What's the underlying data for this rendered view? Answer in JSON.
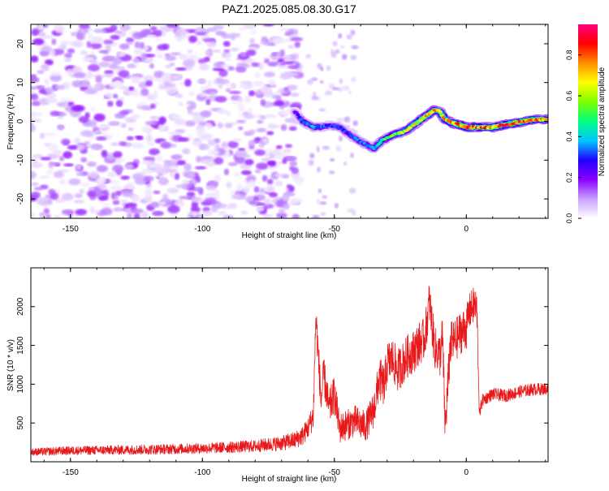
{
  "title": "PAZ1.2025.085.08.30.G17",
  "chart_data": [
    {
      "type": "heatmap",
      "xlabel": "Height of straight line (km)",
      "ylabel": "Frequency (Hz)",
      "xlim": [
        -165,
        31
      ],
      "ylim": [
        -25,
        25
      ],
      "x_ticks": [
        -150,
        -100,
        -50,
        0
      ],
      "y_ticks": [
        -20,
        -10,
        0,
        10,
        20
      ],
      "colorbar": {
        "label": "Normalized spectral amplitude",
        "range": [
          0,
          0.95
        ],
        "ticks": [
          0.0,
          0.2,
          0.4,
          0.6,
          0.8
        ],
        "tick_labels": [
          "0.0",
          "0.2",
          "0.4",
          "0.6",
          "0.8"
        ],
        "colormap": [
          "#ffffff",
          "#c9a0ff",
          "#8b00ff",
          "#2200ff",
          "#00c8ff",
          "#00ff80",
          "#7dff00",
          "#ffff00",
          "#ff9000",
          "#ff0000",
          "#ff0080"
        ]
      },
      "noise_region": {
        "x_range": [
          -165,
          -63
        ],
        "freq_range": [
          -25,
          25
        ],
        "level": 0.12
      },
      "signal_track": {
        "x": [
          -65,
          -62,
          -58,
          -55,
          -52,
          -48,
          -45,
          -42,
          -38,
          -35,
          -32,
          -28,
          -25,
          -22,
          -18,
          -15,
          -12,
          -10,
          -8,
          -5,
          -2,
          0,
          3,
          6,
          10,
          14,
          18,
          22,
          26,
          31
        ],
        "freq": [
          2.5,
          0,
          -1.5,
          -1.5,
          -1,
          -1.5,
          -3,
          -4.5,
          -6,
          -7,
          -5,
          -3.5,
          -3,
          -2,
          0,
          1.5,
          3,
          2.5,
          0.5,
          -0.5,
          -1,
          -1.5,
          -1.5,
          -1.5,
          -1.5,
          -1,
          -0.5,
          0,
          0.5,
          0.5
        ],
        "amp": [
          0.2,
          0.35,
          0.38,
          0.35,
          0.3,
          0.32,
          0.3,
          0.33,
          0.35,
          0.4,
          0.5,
          0.55,
          0.6,
          0.65,
          0.7,
          0.75,
          0.8,
          0.7,
          0.75,
          0.8,
          0.85,
          0.9,
          0.85,
          0.85,
          0.8,
          0.85,
          0.85,
          0.85,
          0.8,
          0.75
        ]
      }
    },
    {
      "type": "line",
      "xlabel": "Height of straight line (km)",
      "ylabel": "SNR (10 * v/v)",
      "xlim": [
        -165,
        31
      ],
      "ylim": [
        0,
        2500
      ],
      "x_ticks": [
        -150,
        -100,
        -50,
        0
      ],
      "y_ticks": [
        500,
        1000,
        1500,
        2000
      ],
      "series": [
        {
          "color": "#e8191b",
          "x": [
            -165,
            -150,
            -120,
            -100,
            -80,
            -70,
            -65,
            -62,
            -60,
            -58,
            -57,
            -55,
            -54,
            -52,
            -50,
            -48,
            -45,
            -42,
            -40,
            -38,
            -35,
            -33,
            -31,
            -30,
            -28,
            -26,
            -25,
            -22,
            -20,
            -18,
            -16,
            -15,
            -14,
            -12,
            -10,
            -9,
            -8,
            -6,
            -4,
            -2,
            0,
            1,
            3,
            4,
            5,
            6,
            10,
            15,
            20,
            25,
            31
          ],
          "y": [
            130,
            150,
            165,
            180,
            210,
            250,
            290,
            350,
            450,
            600,
            1900,
            800,
            1150,
            700,
            900,
            450,
            500,
            550,
            500,
            480,
            700,
            1100,
            1000,
            1300,
            1350,
            1200,
            1250,
            1400,
            1450,
            1550,
            1600,
            1800,
            2100,
            1500,
            1400,
            1650,
            450,
            1550,
            1600,
            1700,
            1750,
            1950,
            2050,
            2000,
            600,
            800,
            880,
            860,
            910,
            940,
            950
          ],
          "noise": [
            60,
            70,
            80,
            85,
            100,
            120,
            140,
            160,
            180,
            220,
            300,
            300,
            300,
            300,
            300,
            250,
            250,
            250,
            250,
            250,
            300,
            350,
            350,
            350,
            350,
            350,
            350,
            350,
            350,
            350,
            350,
            350,
            350,
            350,
            350,
            350,
            350,
            350,
            350,
            350,
            350,
            300,
            300,
            300,
            120,
            100,
            100,
            100,
            100,
            100,
            100
          ]
        }
      ]
    }
  ]
}
